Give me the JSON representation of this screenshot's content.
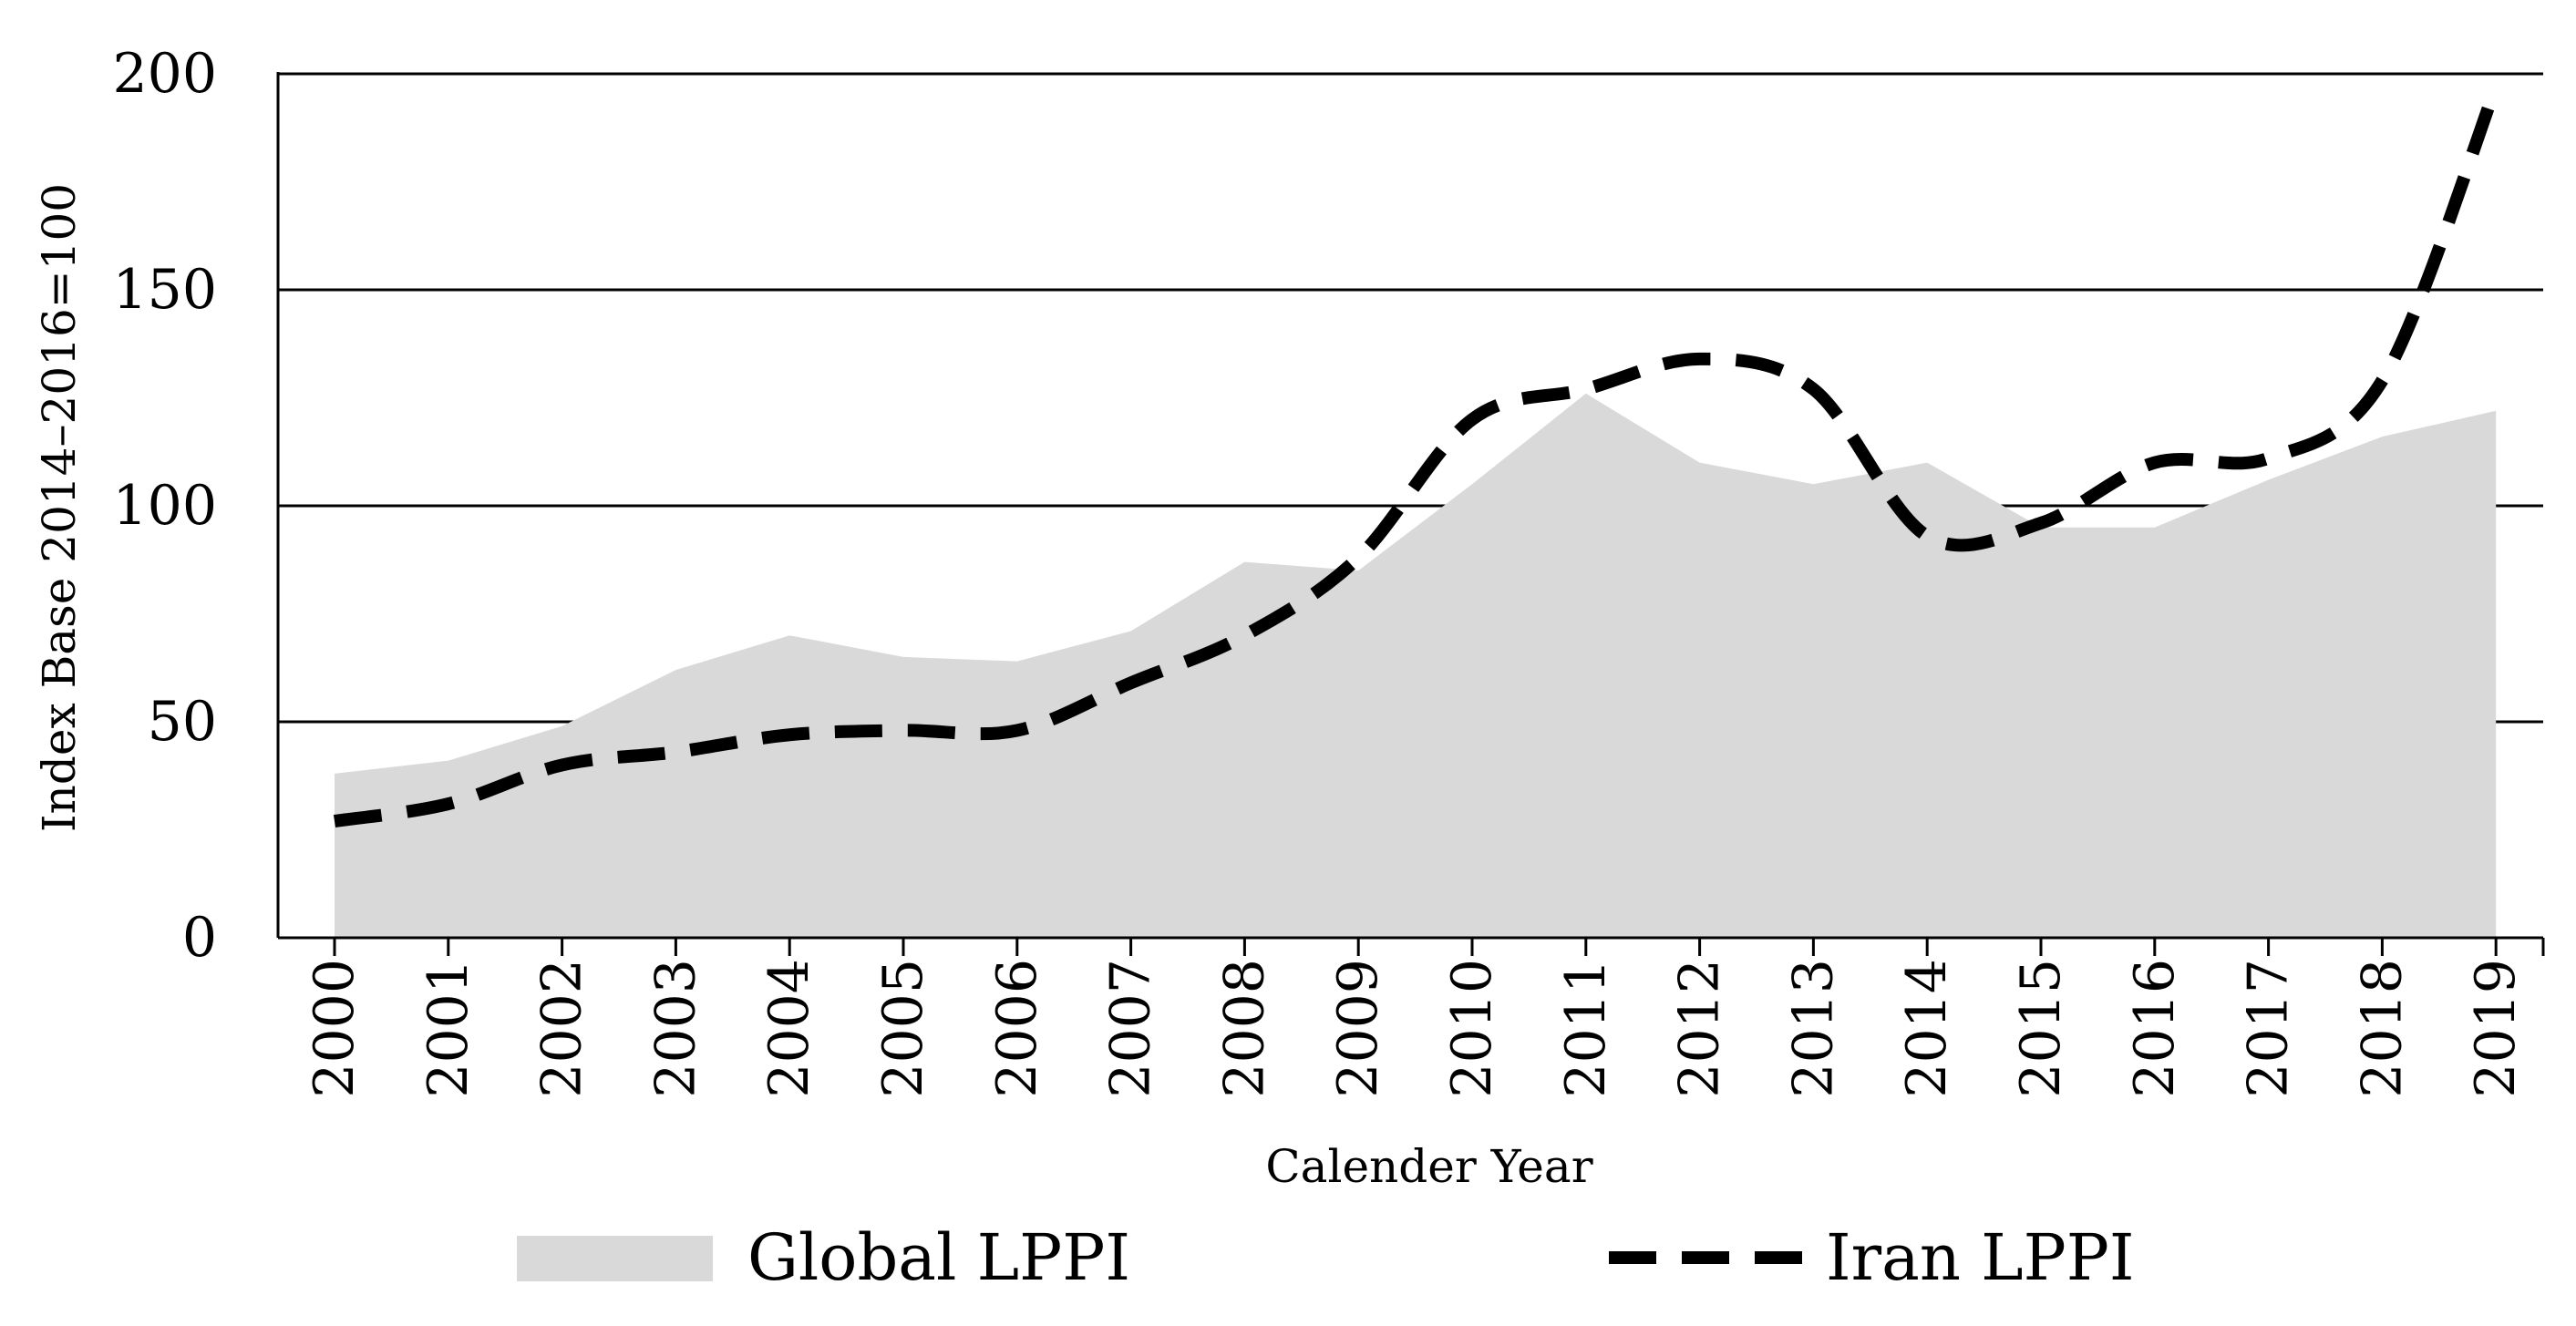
{
  "chart_data": {
    "type": "area",
    "title": "",
    "xlabel": "Calender Year",
    "ylabel": "Index Base 2014–2016=100",
    "ylim": [
      0,
      200
    ],
    "yticks": [
      0,
      50,
      100,
      150,
      200
    ],
    "grid": true,
    "legend_position": "bottom",
    "categories": [
      "2000",
      "2001",
      "2002",
      "2003",
      "2004",
      "2005",
      "2006",
      "2007",
      "2008",
      "2009",
      "2010",
      "2011",
      "2012",
      "2013",
      "2014",
      "2015",
      "2016",
      "2017",
      "2018",
      "2019"
    ],
    "series": [
      {
        "name": "Global LPPI",
        "style": "filled-area",
        "color": "#d9d9d9",
        "values": [
          38,
          41,
          49,
          62,
          70,
          65,
          64,
          71,
          87,
          85,
          105,
          126,
          110,
          105,
          110,
          95,
          95,
          106,
          116,
          122
        ]
      },
      {
        "name": "Iran LPPI",
        "style": "dashed-line",
        "color": "#000000",
        "values": [
          27,
          31,
          40,
          43,
          47,
          48,
          48,
          59,
          70,
          88,
          120,
          127,
          134,
          127,
          93,
          96,
          110,
          111,
          129,
          197
        ]
      }
    ]
  }
}
